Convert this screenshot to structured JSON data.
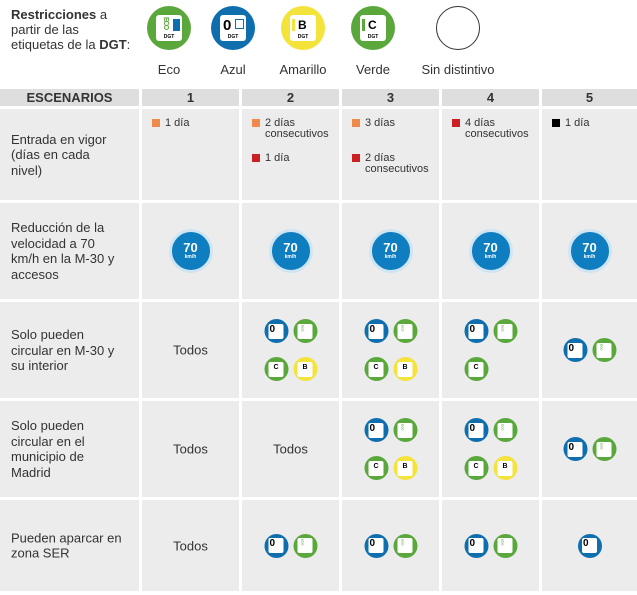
{
  "title": {
    "bold": "Restricciones",
    "rest": " a partir de las etiquetas de la ",
    "dgt": "DGT",
    "colon": ":"
  },
  "labels": [
    {
      "key": "eco",
      "name": "Eco",
      "letter": "ECO",
      "bg": "#5aa83c"
    },
    {
      "key": "azul",
      "name": "Azul",
      "letter": "0",
      "bg": "#0f6fae"
    },
    {
      "key": "amarillo",
      "name": "Amarillo",
      "letter": "B",
      "bg": "#f3e33b"
    },
    {
      "key": "verde",
      "name": "Verde",
      "letter": "C",
      "bg": "#5aa83c"
    },
    {
      "key": "none",
      "name": "Sin distintivo",
      "letter": "",
      "bg": "#ffffff"
    }
  ],
  "badge_text": "DGT",
  "header": {
    "escenarios": "ESCENARIOS",
    "cols": [
      "1",
      "2",
      "3",
      "4",
      "5"
    ]
  },
  "rows": {
    "entrada": "Entrada en vigor (días en cada nivel)",
    "reduccion": "Reducción de la velocidad a 70 km/h en la M-30 y accesos",
    "m30": "Solo pueden circular en M-30 y su interior",
    "municipio": "Solo pueden circular en el municipio de Madrid",
    "aparcar": "Pueden aparcar en zona SER"
  },
  "entrada": {
    "c1": [
      {
        "color": "orange",
        "text": "1 día"
      }
    ],
    "c2": [
      {
        "color": "orange",
        "text": "2 días consecutivos"
      },
      {
        "color": "red",
        "text": "1 día"
      }
    ],
    "c3": [
      {
        "color": "orange",
        "text": "3 días"
      },
      {
        "color": "red",
        "text": "2 días consecutivos"
      }
    ],
    "c4": [
      {
        "color": "red",
        "text": "4 días consecutivos"
      }
    ],
    "c5": [
      {
        "color": "black",
        "text": "1 día"
      }
    ]
  },
  "colors": {
    "orange": "#ef8a4b",
    "red": "#cc1f24",
    "black": "#000000",
    "speed": "#0f7ec0",
    "cell": "#ececec"
  },
  "speed": {
    "num": "70",
    "unit": "km/h"
  },
  "todos": "Todos"
}
